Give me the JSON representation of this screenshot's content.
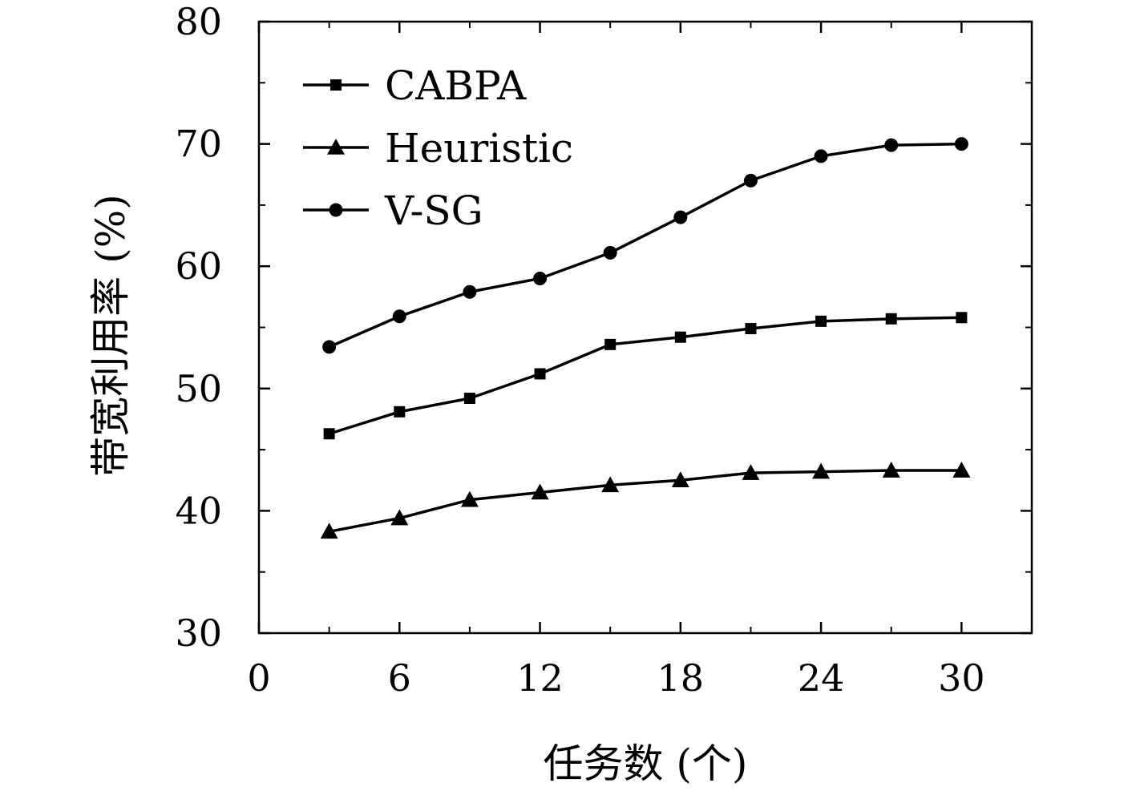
{
  "chart_data": {
    "type": "line",
    "xlabel": "任务数 (个)",
    "ylabel": "带宽利用率 (%)",
    "xlim": [
      0,
      33
    ],
    "ylim": [
      30,
      80
    ],
    "xticks": [
      0,
      6,
      12,
      18,
      24,
      30
    ],
    "yticks": [
      30,
      40,
      50,
      60,
      70,
      80
    ],
    "grid": false,
    "legend_position": "top-left",
    "x": [
      3,
      6,
      9,
      12,
      15,
      18,
      21,
      24,
      27,
      30
    ],
    "series": [
      {
        "name": "CABPA",
        "marker": "square",
        "values": [
          46.3,
          48.1,
          49.2,
          51.2,
          53.6,
          54.2,
          54.9,
          55.5,
          55.7,
          55.8
        ]
      },
      {
        "name": "Heuristic",
        "marker": "triangle",
        "values": [
          38.3,
          39.4,
          40.9,
          41.5,
          42.1,
          42.5,
          43.1,
          43.2,
          43.3,
          43.3
        ]
      },
      {
        "name": "V-SG",
        "marker": "circle",
        "values": [
          53.4,
          55.9,
          57.9,
          59.0,
          61.1,
          64.0,
          67.0,
          69.0,
          69.9,
          70.0
        ]
      }
    ],
    "colors": {
      "line": "#000000",
      "axis": "#000000",
      "background": "#ffffff"
    }
  }
}
